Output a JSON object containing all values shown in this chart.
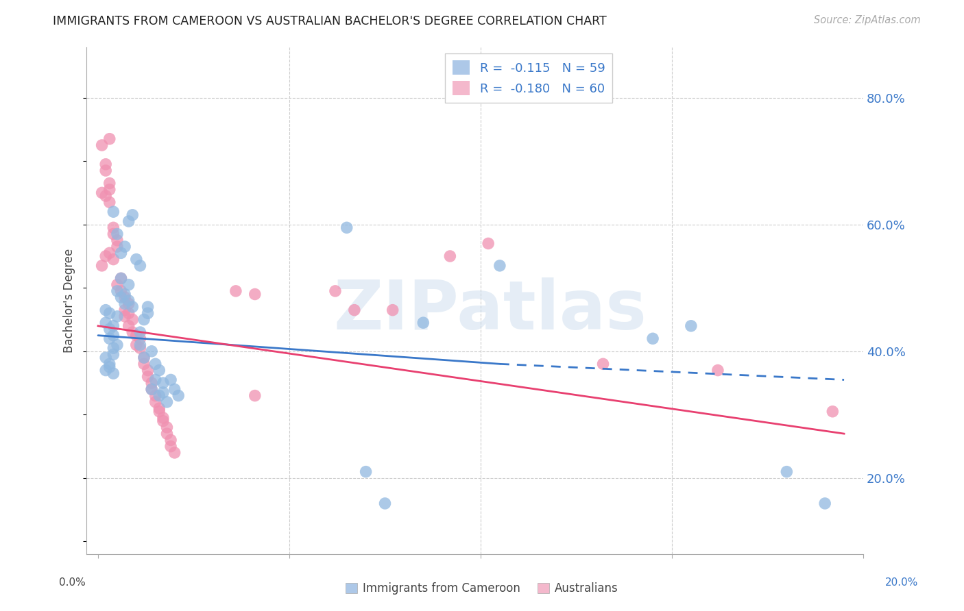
{
  "title": "IMMIGRANTS FROM CAMEROON VS AUSTRALIAN BACHELOR'S DEGREE CORRELATION CHART",
  "source": "Source: ZipAtlas.com",
  "ylabel": "Bachelor's Degree",
  "right_yticks": [
    "20.0%",
    "40.0%",
    "60.0%",
    "80.0%"
  ],
  "right_ytick_vals": [
    20.0,
    40.0,
    60.0,
    80.0
  ],
  "legend_label1": "R =  -0.115   N = 59",
  "legend_label2": "R =  -0.180   N = 60",
  "legend_color1": "#adc8e8",
  "legend_color2": "#f4b8cc",
  "scatter_color1": "#90b8e0",
  "scatter_color2": "#f090b0",
  "line_color1": "#3a78c9",
  "line_color2": "#e84070",
  "watermark": "ZIPatlas",
  "bottom_label1": "Immigrants from Cameroon",
  "bottom_label2": "Australians",
  "blue_scatter": [
    [
      0.3,
      42.0
    ],
    [
      0.4,
      42.5
    ],
    [
      0.3,
      43.5
    ],
    [
      0.2,
      44.5
    ],
    [
      0.4,
      44.0
    ],
    [
      0.5,
      45.5
    ],
    [
      0.3,
      46.0
    ],
    [
      0.2,
      46.5
    ],
    [
      0.3,
      38.0
    ],
    [
      0.4,
      39.5
    ],
    [
      0.2,
      39.0
    ],
    [
      0.4,
      40.5
    ],
    [
      0.5,
      41.0
    ],
    [
      0.3,
      37.5
    ],
    [
      0.2,
      37.0
    ],
    [
      0.4,
      36.5
    ],
    [
      0.6,
      48.5
    ],
    [
      0.5,
      49.5
    ],
    [
      0.7,
      49.0
    ],
    [
      0.6,
      51.5
    ],
    [
      0.8,
      50.5
    ],
    [
      0.7,
      47.5
    ],
    [
      0.8,
      48.0
    ],
    [
      0.9,
      47.0
    ],
    [
      0.6,
      55.5
    ],
    [
      0.7,
      56.5
    ],
    [
      0.5,
      58.5
    ],
    [
      0.8,
      60.5
    ],
    [
      0.9,
      61.5
    ],
    [
      0.4,
      62.0
    ],
    [
      1.0,
      54.5
    ],
    [
      1.1,
      53.5
    ],
    [
      1.1,
      43.0
    ],
    [
      1.2,
      45.0
    ],
    [
      1.3,
      46.0
    ],
    [
      1.3,
      47.0
    ],
    [
      1.1,
      41.0
    ],
    [
      1.2,
      39.0
    ],
    [
      1.4,
      40.0
    ],
    [
      1.5,
      38.0
    ],
    [
      1.6,
      37.0
    ],
    [
      1.5,
      35.5
    ],
    [
      1.4,
      34.0
    ],
    [
      1.7,
      35.0
    ],
    [
      1.6,
      33.0
    ],
    [
      1.8,
      32.0
    ],
    [
      1.7,
      33.5
    ],
    [
      1.9,
      35.5
    ],
    [
      2.0,
      34.0
    ],
    [
      2.1,
      33.0
    ],
    [
      6.5,
      59.5
    ],
    [
      7.0,
      21.0
    ],
    [
      7.5,
      16.0
    ],
    [
      8.5,
      44.5
    ],
    [
      10.5,
      53.5
    ],
    [
      14.5,
      42.0
    ],
    [
      15.5,
      44.0
    ],
    [
      18.0,
      21.0
    ],
    [
      19.0,
      16.0
    ]
  ],
  "pink_scatter": [
    [
      0.1,
      72.5
    ],
    [
      0.2,
      69.5
    ],
    [
      0.2,
      68.5
    ],
    [
      0.3,
      66.5
    ],
    [
      0.3,
      65.5
    ],
    [
      0.1,
      65.0
    ],
    [
      0.2,
      64.5
    ],
    [
      0.3,
      63.5
    ],
    [
      0.4,
      59.5
    ],
    [
      0.4,
      58.5
    ],
    [
      0.5,
      56.5
    ],
    [
      0.5,
      57.5
    ],
    [
      0.4,
      54.5
    ],
    [
      0.3,
      55.5
    ],
    [
      0.1,
      53.5
    ],
    [
      0.2,
      55.0
    ],
    [
      0.5,
      50.5
    ],
    [
      0.6,
      51.5
    ],
    [
      0.7,
      48.5
    ],
    [
      0.6,
      49.5
    ],
    [
      0.7,
      46.5
    ],
    [
      0.8,
      47.5
    ],
    [
      0.7,
      45.5
    ],
    [
      0.8,
      46.0
    ],
    [
      0.8,
      44.0
    ],
    [
      0.9,
      45.0
    ],
    [
      0.9,
      43.0
    ],
    [
      1.0,
      42.5
    ],
    [
      1.0,
      41.0
    ],
    [
      1.1,
      42.0
    ],
    [
      1.1,
      40.5
    ],
    [
      1.2,
      39.0
    ],
    [
      1.2,
      38.0
    ],
    [
      1.3,
      37.0
    ],
    [
      1.3,
      36.0
    ],
    [
      1.4,
      35.0
    ],
    [
      1.4,
      34.0
    ],
    [
      1.5,
      33.0
    ],
    [
      1.5,
      32.0
    ],
    [
      1.6,
      31.0
    ],
    [
      1.6,
      30.5
    ],
    [
      1.7,
      29.5
    ],
    [
      1.7,
      29.0
    ],
    [
      1.8,
      28.0
    ],
    [
      1.8,
      27.0
    ],
    [
      1.9,
      26.0
    ],
    [
      1.9,
      25.0
    ],
    [
      2.0,
      24.0
    ],
    [
      0.3,
      73.5
    ],
    [
      3.6,
      49.5
    ],
    [
      4.1,
      49.0
    ],
    [
      4.1,
      33.0
    ],
    [
      6.2,
      49.5
    ],
    [
      6.7,
      46.5
    ],
    [
      7.7,
      46.5
    ],
    [
      9.2,
      55.0
    ],
    [
      10.2,
      57.0
    ],
    [
      13.2,
      38.0
    ],
    [
      16.2,
      37.0
    ],
    [
      19.2,
      30.5
    ]
  ],
  "blue_line_x1": 0.0,
  "blue_line_x2": 10.5,
  "blue_line_x3": 19.5,
  "blue_line_y1": 42.5,
  "blue_line_y2": 38.0,
  "blue_line_y3": 35.5,
  "pink_line_x1": 0.0,
  "pink_line_x2": 19.5,
  "pink_line_y1": 44.0,
  "pink_line_y2": 27.0,
  "xlim": [
    -0.3,
    20.0
  ],
  "ylim": [
    8.0,
    88.0
  ],
  "xtick_positions": [
    0.0,
    5.0,
    10.0,
    15.0,
    20.0
  ],
  "ytick_grid": [
    20.0,
    40.0,
    60.0,
    80.0
  ]
}
